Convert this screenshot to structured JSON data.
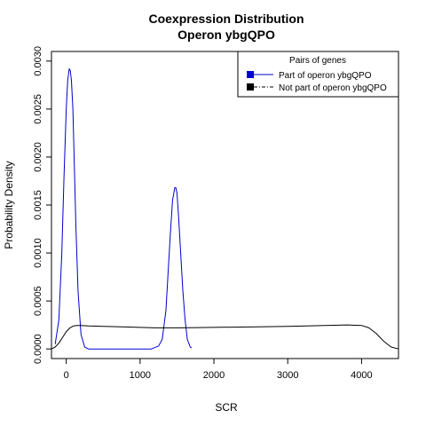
{
  "chart_data": {
    "type": "line",
    "title": "Coexpression Distribution",
    "subtitle": "Operon ybgQPO",
    "xlabel": "SCR",
    "ylabel": "Probability Density",
    "xlim": [
      -200,
      4500
    ],
    "ylim": [
      -0.0001,
      0.0031
    ],
    "x_ticks": [
      0,
      1000,
      2000,
      3000,
      4000
    ],
    "y_ticks": [
      0.0,
      0.0005,
      0.001,
      0.0015,
      0.002,
      0.0025,
      0.003
    ],
    "x_tick_labels": [
      "0",
      "1000",
      "2000",
      "3000",
      "4000"
    ],
    "y_tick_labels": [
      "0.0000",
      "0.0005",
      "0.0010",
      "0.0015",
      "0.0020",
      "0.0025",
      "0.0030"
    ],
    "grid": false,
    "legend": {
      "title": "Pairs of genes",
      "position": "top-right",
      "entries": [
        {
          "label": "Part of operon ybgQPO",
          "color": "#0000cc",
          "line": "solid"
        },
        {
          "label": "Not part of operon ybgQPO",
          "color": "#000000",
          "line": "dashdot"
        }
      ]
    },
    "series": [
      {
        "name": "Part of operon ybgQPO",
        "color": "#0000cc",
        "x": [
          -150,
          -100,
          -60,
          -30,
          0,
          20,
          40,
          55,
          70,
          90,
          110,
          130,
          160,
          200,
          250,
          300,
          400,
          600,
          800,
          1000,
          1150,
          1250,
          1300,
          1350,
          1380,
          1410,
          1440,
          1470,
          1485,
          1500,
          1520,
          1550,
          1580,
          1610,
          1640,
          1680,
          1700
        ],
        "y": [
          5e-05,
          0.0003,
          0.001,
          0.0018,
          0.0025,
          0.0028,
          0.00292,
          0.0029,
          0.0028,
          0.0025,
          0.0019,
          0.0013,
          0.0006,
          0.00015,
          2e-05,
          0.0,
          0.0,
          0.0,
          0.0,
          0.0,
          0.0,
          3e-05,
          0.0001,
          0.0004,
          0.0008,
          0.0012,
          0.00155,
          0.00168,
          0.00168,
          0.00162,
          0.0014,
          0.001,
          0.0006,
          0.0003,
          0.0001,
          2e-05,
          1e-05
        ]
      },
      {
        "name": "Not part of operon ybgQPO",
        "color": "#000000",
        "x": [
          -200,
          -150,
          -100,
          -50,
          0,
          50,
          100,
          150,
          200,
          300,
          500,
          800,
          1000,
          1200,
          1500,
          1800,
          2000,
          2500,
          3000,
          3500,
          3800,
          4000,
          4100,
          4200,
          4300,
          4400,
          4500
        ],
        "y": [
          0.0,
          2e-05,
          6e-05,
          0.00012,
          0.00018,
          0.00022,
          0.00024,
          0.000245,
          0.000245,
          0.00024,
          0.000235,
          0.00023,
          0.000225,
          0.00022,
          0.00022,
          0.000222,
          0.000225,
          0.00023,
          0.000235,
          0.000245,
          0.00025,
          0.000245,
          0.00022,
          0.00016,
          8e-05,
          2e-05,
          0.0
        ]
      }
    ]
  }
}
